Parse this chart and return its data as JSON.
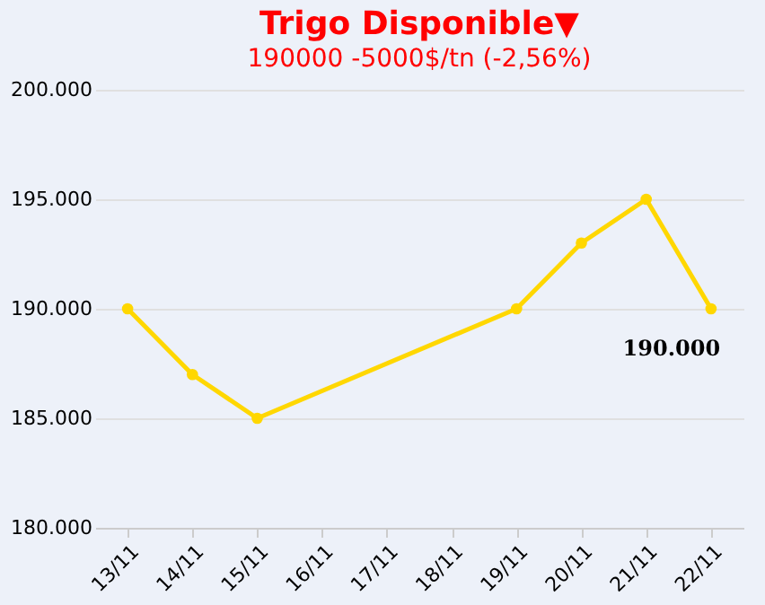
{
  "chart_data": {
    "type": "line",
    "title": "Trigo Disponible▼",
    "subtitle": "190000 -5000$/tn (-2,56%)",
    "categories": [
      "13/11",
      "14/11",
      "15/11",
      "16/11",
      "17/11",
      "18/11",
      "19/11",
      "20/11",
      "21/11",
      "22/11"
    ],
    "series": [
      {
        "color": "#ffd700",
        "values": [
          190000,
          187000,
          185000,
          null,
          null,
          null,
          190000,
          193000,
          195000,
          190000
        ],
        "value_labels": [
          null,
          null,
          null,
          null,
          null,
          null,
          null,
          null,
          null,
          "190.000"
        ]
      }
    ],
    "ylim": [
      180000,
      200000
    ],
    "yticks": [
      {
        "value": 180000,
        "label": "180.000"
      },
      {
        "value": 185000,
        "label": "185.000"
      },
      {
        "value": 190000,
        "label": "190.000"
      },
      {
        "value": 195000,
        "label": "195.000"
      },
      {
        "value": 200000,
        "label": "200.000"
      }
    ],
    "grid": "y",
    "marker": "circle",
    "line_style": "solid"
  }
}
